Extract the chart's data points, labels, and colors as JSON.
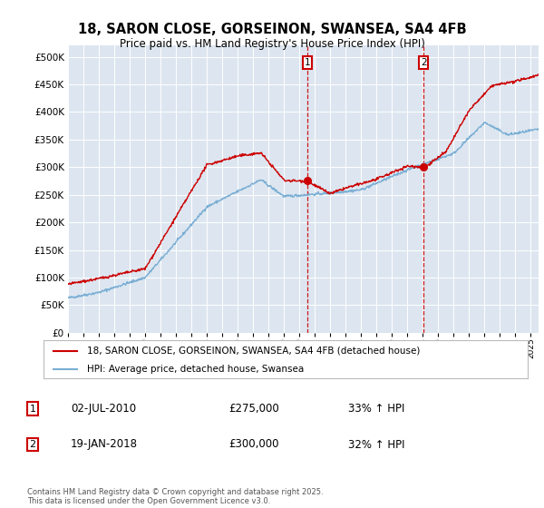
{
  "title_line1": "18, SARON CLOSE, GORSEINON, SWANSEA, SA4 4FB",
  "title_line2": "Price paid vs. HM Land Registry's House Price Index (HPI)",
  "legend_label_red": "18, SARON CLOSE, GORSEINON, SWANSEA, SA4 4FB (detached house)",
  "legend_label_blue": "HPI: Average price, detached house, Swansea",
  "transaction1_date": "02-JUL-2010",
  "transaction1_price": "£275,000",
  "transaction1_hpi": "33% ↑ HPI",
  "transaction2_date": "19-JAN-2018",
  "transaction2_price": "£300,000",
  "transaction2_hpi": "32% ↑ HPI",
  "footer": "Contains HM Land Registry data © Crown copyright and database right 2025.\nThis data is licensed under the Open Government Licence v3.0.",
  "ylim": [
    0,
    520000
  ],
  "yticks": [
    0,
    50000,
    100000,
    150000,
    200000,
    250000,
    300000,
    350000,
    400000,
    450000,
    500000
  ],
  "plot_bg_color": "#dde6f0",
  "red_color": "#cc0000",
  "blue_color": "#7aaed4",
  "vline_color": "#cc0000",
  "grid_color": "#ffffff",
  "transaction1_date_num": 2010.5,
  "transaction2_date_num": 2018.05,
  "xlim_start": 1995,
  "xlim_end": 2025.5
}
